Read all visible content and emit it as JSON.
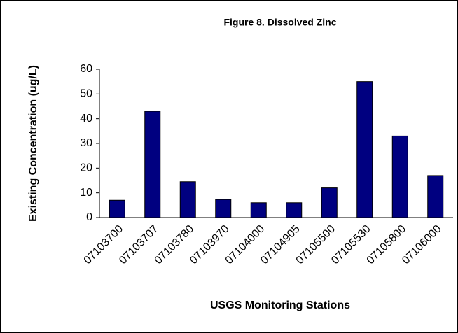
{
  "chart_data": {
    "type": "bar",
    "title": "Figure 8.  Dissolved Zinc",
    "x_label": "USGS Monitoring Stations",
    "y_label": "Existing Concentration (ug/L)",
    "categories": [
      "07103700",
      "07103707",
      "07103780",
      "07103970",
      "07104000",
      "07104905",
      "07105500",
      "07105530",
      "07105800",
      "07106000"
    ],
    "values": [
      7,
      43,
      14.5,
      7.3,
      6,
      6,
      12,
      55,
      33,
      17
    ],
    "color": "#000080",
    "ylim": [
      0,
      60
    ],
    "yticks": [
      0,
      10,
      20,
      30,
      40,
      50,
      60
    ],
    "grid": false
  }
}
